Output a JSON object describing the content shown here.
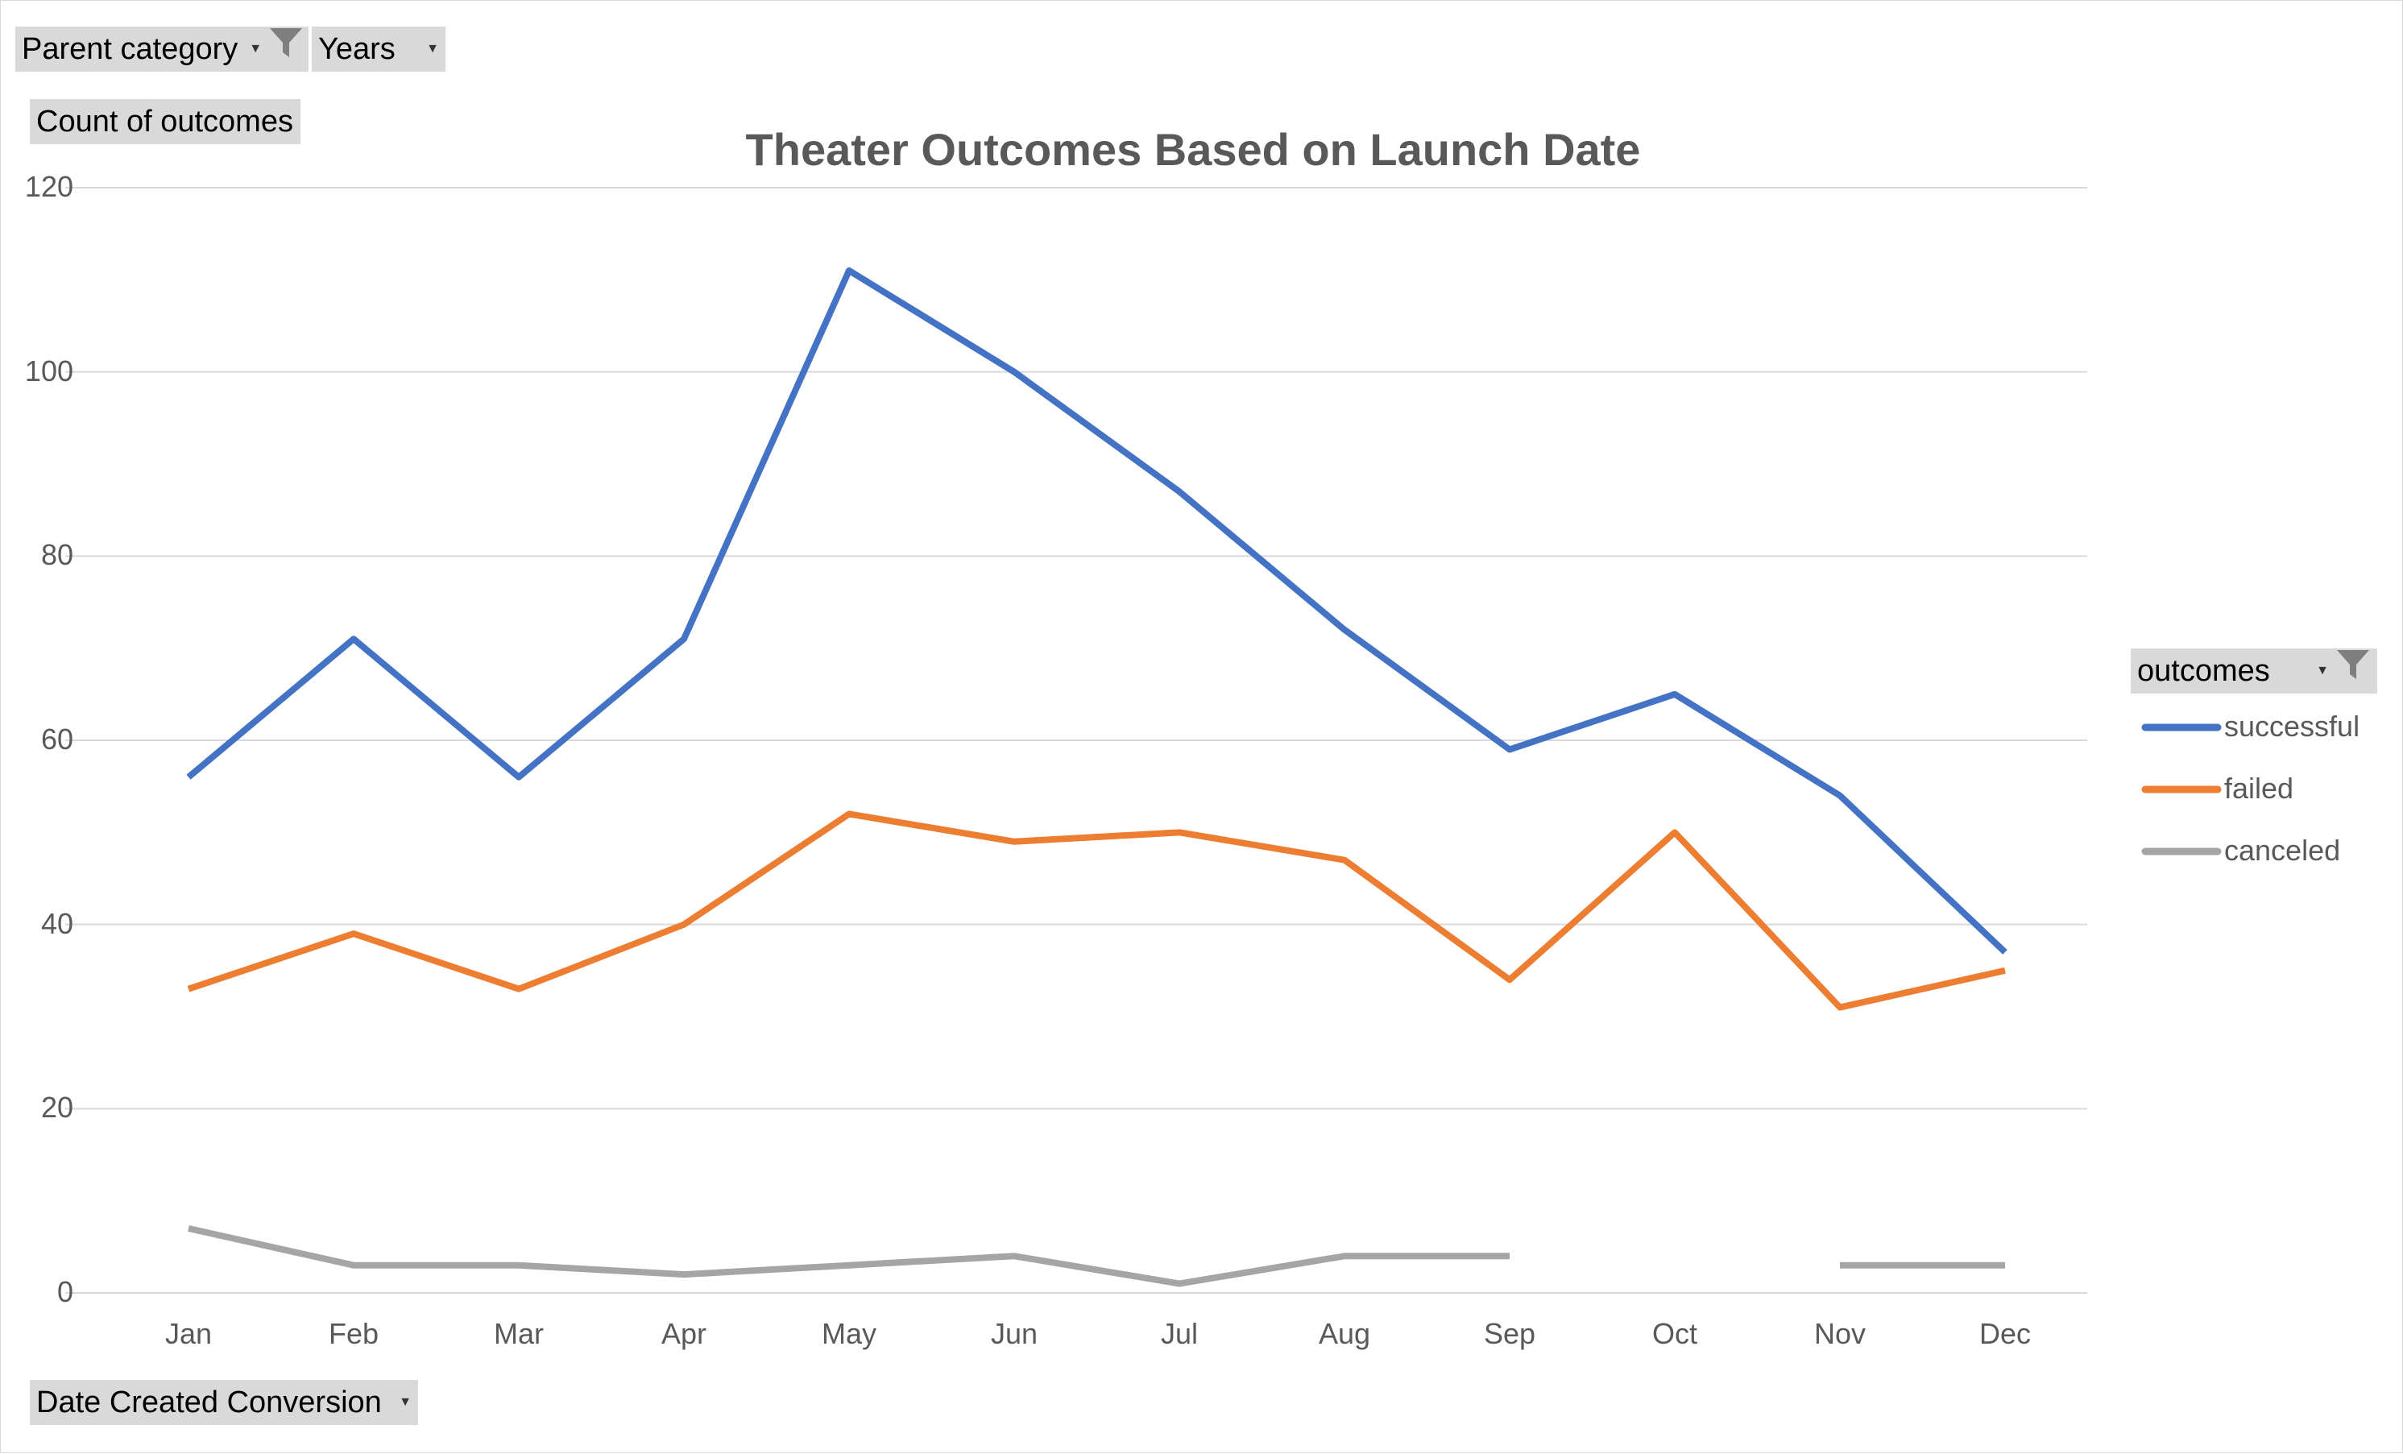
{
  "filters": {
    "parent_category": "Parent category",
    "years": "Years",
    "count_field": "Count of outcomes",
    "date_field": "Date Created Conversion",
    "legend_field": "outcomes"
  },
  "icons": [
    "filter-funnel-icon",
    "dropdown-arrow-icon"
  ],
  "colors": {
    "successful": "#4472C4",
    "failed": "#ED7D31",
    "canceled": "#A5A5A5",
    "gridline": "#d9d9d9",
    "text": "#595959"
  },
  "chart_data": {
    "type": "line",
    "title": "Theater Outcomes Based on Launch Date",
    "xlabel": "",
    "ylabel": "",
    "categories": [
      "Jan",
      "Feb",
      "Mar",
      "Apr",
      "May",
      "Jun",
      "Jul",
      "Aug",
      "Sep",
      "Oct",
      "Nov",
      "Dec"
    ],
    "ylim": [
      0,
      120
    ],
    "yticks": [
      "0",
      "20",
      "40",
      "60",
      "80",
      "100",
      "120"
    ],
    "grid": true,
    "legend_position": "right",
    "series": [
      {
        "name": "successful",
        "values": [
          56,
          71,
          56,
          71,
          111,
          100,
          87,
          72,
          59,
          65,
          54,
          37
        ]
      },
      {
        "name": "failed",
        "values": [
          33,
          39,
          33,
          40,
          52,
          49,
          50,
          47,
          34,
          50,
          31,
          35
        ]
      },
      {
        "name": "canceled",
        "values": [
          7,
          3,
          3,
          2,
          3,
          4,
          1,
          4,
          4,
          null,
          3,
          3
        ]
      }
    ]
  }
}
